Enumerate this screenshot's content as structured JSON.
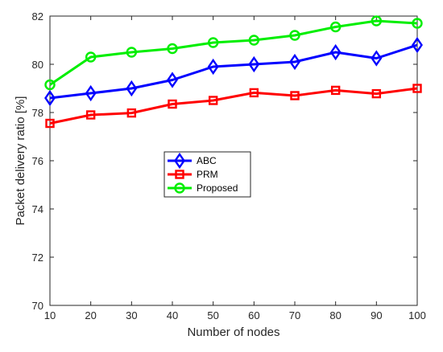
{
  "chart_data": {
    "type": "line",
    "title": "",
    "xlabel": "Number of nodes",
    "ylabel": "Packet delivery ratio [%]",
    "x": [
      10,
      20,
      30,
      40,
      50,
      60,
      70,
      80,
      90,
      100
    ],
    "xlim": [
      10,
      100
    ],
    "ylim": [
      70,
      82
    ],
    "xticks": [
      "10",
      "20",
      "30",
      "40",
      "50",
      "60",
      "70",
      "80",
      "90",
      "100"
    ],
    "yticks": [
      "70",
      "72",
      "74",
      "76",
      "78",
      "80",
      "82"
    ],
    "grid": false,
    "legend_position": "center-left",
    "series": [
      {
        "name": "ABC",
        "color": "#0000ff",
        "marker": "diamond",
        "values": [
          78.6,
          78.8,
          79.0,
          79.35,
          79.9,
          80.0,
          80.1,
          80.5,
          80.25,
          80.8
        ]
      },
      {
        "name": "PRM",
        "color": "#ff0000",
        "marker": "square",
        "values": [
          77.55,
          77.9,
          77.98,
          78.35,
          78.5,
          78.82,
          78.7,
          78.92,
          78.78,
          79.0
        ]
      },
      {
        "name": "Proposed",
        "color": "#00ee00",
        "marker": "circle",
        "values": [
          79.15,
          80.3,
          80.5,
          80.65,
          80.9,
          81.0,
          81.2,
          81.55,
          81.8,
          81.7
        ]
      }
    ]
  }
}
